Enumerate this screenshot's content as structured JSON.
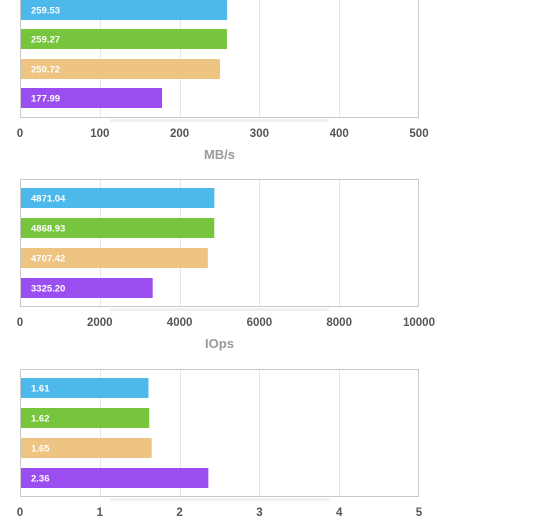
{
  "colors": [
    "#4db8ea",
    "#76c53c",
    "#eec483",
    "#9b4ef0"
  ],
  "chart_data": [
    {
      "type": "bar",
      "orientation": "horizontal",
      "values": [
        259.53,
        259.27,
        250.72,
        177.99
      ],
      "labels": [
        "259.53",
        "259.27",
        "250.72",
        "177.99"
      ],
      "xlim": [
        0,
        500
      ],
      "ticks": [
        "0",
        "100",
        "200",
        "300",
        "400",
        "500"
      ],
      "xlabel": "MB/s",
      "grid": true
    },
    {
      "type": "bar",
      "orientation": "horizontal",
      "values": [
        4871.04,
        4868.93,
        4707.42,
        3325.2
      ],
      "labels": [
        "4871.04",
        "4868.93",
        "4707.42",
        "3325.20"
      ],
      "xlim": [
        0,
        10000
      ],
      "ticks": [
        "0",
        "2000",
        "4000",
        "6000",
        "8000",
        "10000"
      ],
      "xlabel": "IOps",
      "grid": true
    },
    {
      "type": "bar",
      "orientation": "horizontal",
      "values": [
        1.61,
        1.62,
        1.65,
        2.36
      ],
      "labels": [
        "1.61",
        "1.62",
        "1.65",
        "2.36"
      ],
      "xlim": [
        0,
        5
      ],
      "ticks": [
        "0",
        "1",
        "2",
        "3",
        "4",
        "5"
      ],
      "xlabel": "",
      "grid": true
    }
  ]
}
